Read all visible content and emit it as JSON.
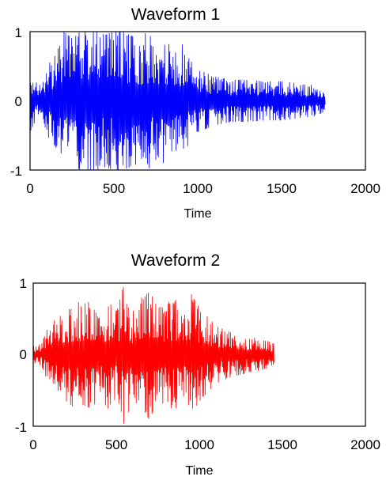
{
  "chart_data": [
    {
      "type": "line",
      "title": "Waveform 1",
      "xlabel": "Time",
      "ylabel": "",
      "xlim": [
        0,
        2000
      ],
      "ylim": [
        -1,
        1
      ],
      "xticks": [
        "0",
        "500",
        "1000",
        "1500",
        "2000"
      ],
      "yticks": [
        "1",
        "0",
        "-1"
      ],
      "grid": false,
      "series": [
        {
          "color": "#0000ff",
          "envelope": {
            "x": [
              0,
              50,
              100,
              150,
              200,
              250,
              300,
              350,
              400,
              450,
              500,
              550,
              600,
              650,
              700,
              750,
              800,
              850,
              900,
              950,
              1000,
              1100,
              1200,
              1300,
              1400,
              1500,
              1600,
              1700,
              1760
            ],
            "amplitude": [
              0.45,
              0.2,
              0.5,
              0.65,
              1.0,
              0.9,
              1.0,
              1.0,
              1.0,
              0.95,
              1.0,
              1.0,
              0.95,
              0.9,
              1.0,
              0.85,
              0.9,
              0.75,
              0.85,
              0.6,
              0.45,
              0.35,
              0.3,
              0.3,
              0.28,
              0.28,
              0.25,
              0.22,
              0.15
            ]
          }
        }
      ]
    },
    {
      "type": "line",
      "title": "Waveform 2",
      "xlabel": "Time",
      "ylabel": "",
      "xlim": [
        0,
        2000
      ],
      "ylim": [
        -1,
        1
      ],
      "xticks": [
        "0",
        "500",
        "1000",
        "1500",
        "2000"
      ],
      "yticks": [
        "1",
        "0",
        "-1"
      ],
      "grid": false,
      "series": [
        {
          "color": "#ff0000",
          "envelope": {
            "x": [
              0,
              50,
              100,
              150,
              200,
              250,
              300,
              350,
              400,
              450,
              500,
              550,
              600,
              650,
              700,
              750,
              800,
              850,
              900,
              950,
              1000,
              1100,
              1200,
              1300,
              1400,
              1450
            ],
            "amplitude": [
              0.12,
              0.15,
              0.45,
              0.5,
              0.65,
              0.75,
              0.7,
              0.75,
              0.6,
              0.75,
              0.6,
              1.0,
              0.6,
              0.85,
              0.9,
              0.65,
              0.7,
              0.8,
              0.55,
              0.85,
              0.65,
              0.4,
              0.3,
              0.25,
              0.2,
              0.15
            ]
          }
        }
      ]
    }
  ]
}
